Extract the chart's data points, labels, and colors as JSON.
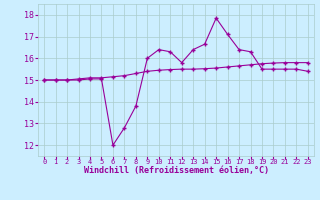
{
  "x": [
    0,
    1,
    2,
    3,
    4,
    5,
    6,
    7,
    8,
    9,
    10,
    11,
    12,
    13,
    14,
    15,
    16,
    17,
    18,
    19,
    20,
    21,
    22,
    23
  ],
  "line1": [
    15.0,
    15.0,
    15.0,
    15.05,
    15.1,
    15.1,
    15.15,
    15.2,
    15.3,
    15.4,
    15.45,
    15.48,
    15.5,
    15.5,
    15.52,
    15.55,
    15.6,
    15.65,
    15.7,
    15.75,
    15.78,
    15.8,
    15.8,
    15.8
  ],
  "line2": [
    15.0,
    15.0,
    15.0,
    15.0,
    15.05,
    15.05,
    12.0,
    12.8,
    13.8,
    16.0,
    16.4,
    16.3,
    15.8,
    16.4,
    16.65,
    17.85,
    17.1,
    16.4,
    16.3,
    15.5,
    15.5,
    15.5,
    15.5,
    15.4
  ],
  "color": "#990099",
  "bg_color": "#cceeff",
  "grid_color": "#aacccc",
  "xlabel": "Windchill (Refroidissement éolien,°C)",
  "ylim": [
    11.5,
    18.5
  ],
  "yticks": [
    12,
    13,
    14,
    15,
    16,
    17,
    18
  ],
  "xticks": [
    0,
    1,
    2,
    3,
    4,
    5,
    6,
    7,
    8,
    9,
    10,
    11,
    12,
    13,
    14,
    15,
    16,
    17,
    18,
    19,
    20,
    21,
    22,
    23
  ]
}
